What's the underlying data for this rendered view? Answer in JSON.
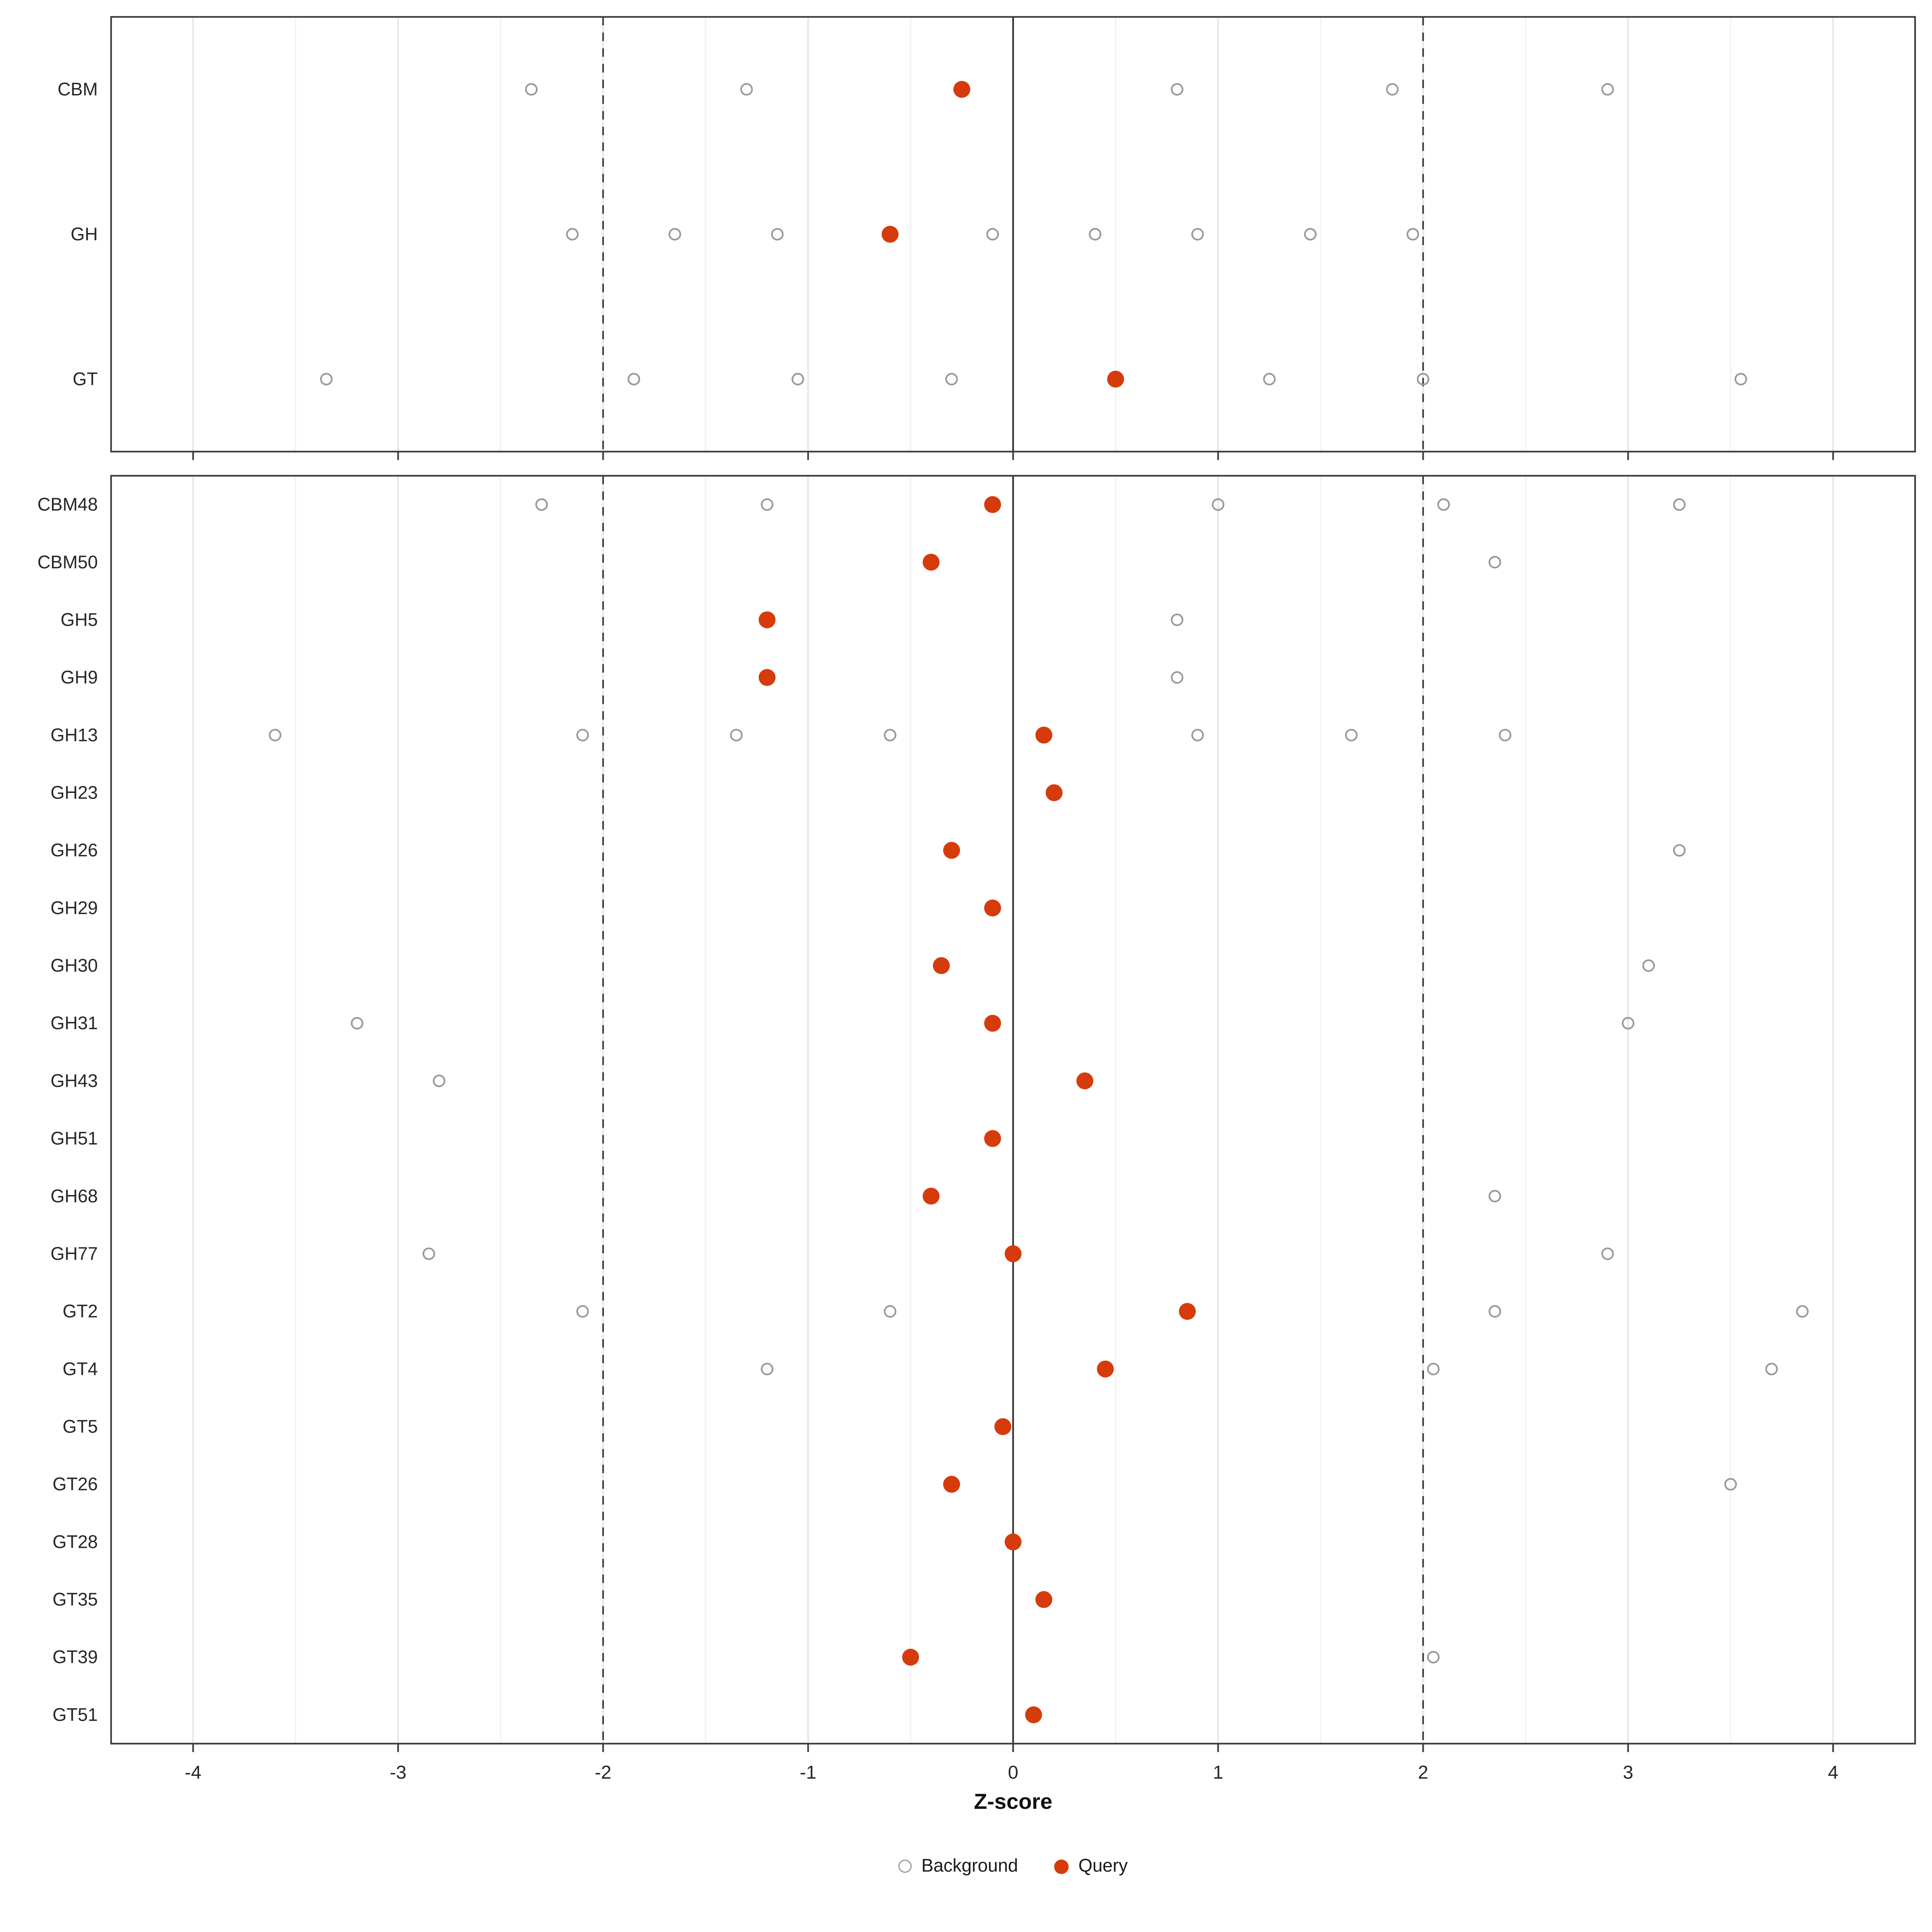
{
  "chart_data": {
    "type": "scatter",
    "title": "",
    "xlabel": "Z-score",
    "xlim": [
      -4.4,
      4.4
    ],
    "xticks": [
      -4,
      -3,
      -2,
      -1,
      0,
      1,
      2,
      3,
      4
    ],
    "minor_step": 0.5,
    "reference_lines": {
      "solid": [
        0
      ],
      "dashed": [
        -2,
        2
      ]
    },
    "legend": {
      "background_label": "Background",
      "query_label": "Query"
    },
    "colors": {
      "query": "#d63b0b",
      "background_stroke": "#9a9a9a",
      "grid_major": "#e3e3e3",
      "grid_minor": "#f1f1f1",
      "panel_border": "#404040",
      "ref_line": "#333333",
      "text": "#262626"
    },
    "panels": [
      {
        "name": "class-summary",
        "rows": [
          {
            "category": "CBM",
            "query": -0.25,
            "background": [
              -2.35,
              -1.3,
              0.8,
              1.85,
              2.9
            ]
          },
          {
            "category": "GH",
            "query": -0.6,
            "background": [
              -2.15,
              -1.65,
              -1.15,
              -0.1,
              0.4,
              0.9,
              1.45,
              1.95
            ]
          },
          {
            "category": "GT",
            "query": 0.5,
            "background": [
              -3.35,
              -1.85,
              -1.05,
              -0.3,
              1.25,
              2.0,
              3.55
            ]
          }
        ]
      },
      {
        "name": "family-detail",
        "rows": [
          {
            "category": "CBM48",
            "query": -0.1,
            "background": [
              -2.3,
              -1.2,
              1.0,
              2.1,
              3.25
            ]
          },
          {
            "category": "CBM50",
            "query": -0.4,
            "background": [
              2.35
            ]
          },
          {
            "category": "GH5",
            "query": -1.2,
            "background": [
              0.8
            ]
          },
          {
            "category": "GH9",
            "query": -1.2,
            "background": [
              0.8
            ]
          },
          {
            "category": "GH13",
            "query": 0.15,
            "background": [
              -3.6,
              -2.1,
              -1.35,
              -0.6,
              0.9,
              1.65,
              2.4
            ]
          },
          {
            "category": "GH23",
            "query": 0.2,
            "background": []
          },
          {
            "category": "GH26",
            "query": -0.3,
            "background": [
              3.25
            ]
          },
          {
            "category": "GH29",
            "query": -0.1,
            "background": []
          },
          {
            "category": "GH30",
            "query": -0.35,
            "background": [
              3.1
            ]
          },
          {
            "category": "GH31",
            "query": -0.1,
            "background": [
              -3.2,
              3.0
            ]
          },
          {
            "category": "GH43",
            "query": 0.35,
            "background": [
              -2.8
            ]
          },
          {
            "category": "GH51",
            "query": -0.1,
            "background": []
          },
          {
            "category": "GH68",
            "query": -0.4,
            "background": [
              2.35
            ]
          },
          {
            "category": "GH77",
            "query": 0.0,
            "background": [
              -2.85,
              2.9
            ]
          },
          {
            "category": "GT2",
            "query": 0.85,
            "background": [
              -2.1,
              -0.6,
              2.35,
              3.85
            ]
          },
          {
            "category": "GT4",
            "query": 0.45,
            "background": [
              -1.2,
              2.05,
              3.7
            ]
          },
          {
            "category": "GT5",
            "query": -0.05,
            "background": []
          },
          {
            "category": "GT26",
            "query": -0.3,
            "background": [
              3.5
            ]
          },
          {
            "category": "GT28",
            "query": 0.0,
            "background": []
          },
          {
            "category": "GT35",
            "query": 0.15,
            "background": []
          },
          {
            "category": "GT39",
            "query": -0.5,
            "background": [
              2.05
            ]
          },
          {
            "category": "GT51",
            "query": 0.1,
            "background": []
          }
        ]
      }
    ]
  }
}
